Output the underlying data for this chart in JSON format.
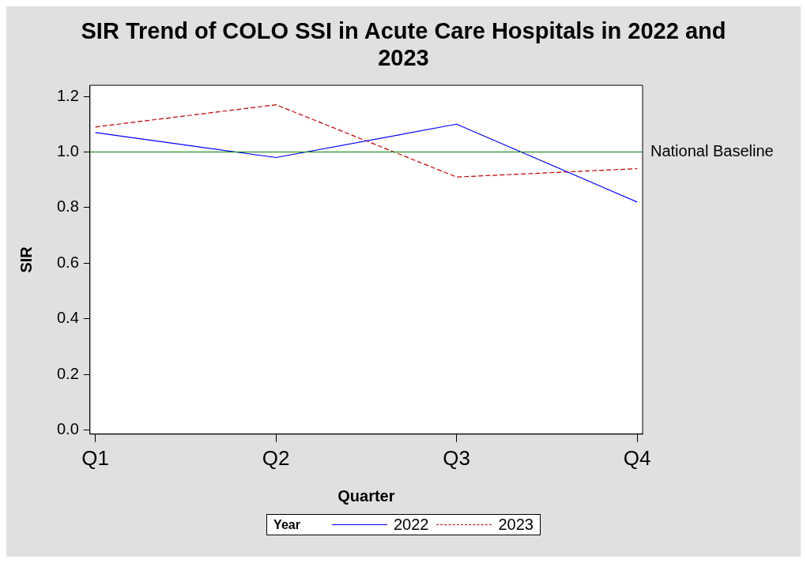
{
  "chart_data": {
    "type": "line",
    "title": "SIR Trend of COLO SSI in Acute Care Hospitals in 2022 and 2023",
    "xlabel": "Quarter",
    "ylabel": "SIR",
    "legend_title": "Year",
    "categories": [
      "Q1",
      "Q2",
      "Q3",
      "Q4"
    ],
    "series": [
      {
        "name": "2022",
        "color": "#0000ff",
        "values": [
          1.07,
          0.98,
          1.1,
          0.82
        ],
        "line_style": "solid"
      },
      {
        "name": "2023",
        "color": "#c00000",
        "values": [
          1.09,
          1.17,
          0.91,
          0.94
        ],
        "line_style": "dashed"
      }
    ],
    "ylim": [
      -0.015,
      1.24
    ],
    "yticks": [
      {
        "value": 0,
        "label": "0.0"
      },
      0.2,
      0.4,
      0.6,
      0.8,
      {
        "value": 1,
        "label": "1.0"
      },
      1.2
    ],
    "ref_lines": [
      {
        "axis": "y",
        "value": 1.0,
        "label": "National Baseline",
        "color": "#008000"
      }
    ],
    "grid": false,
    "legend": "bottom",
    "marker": "none"
  }
}
